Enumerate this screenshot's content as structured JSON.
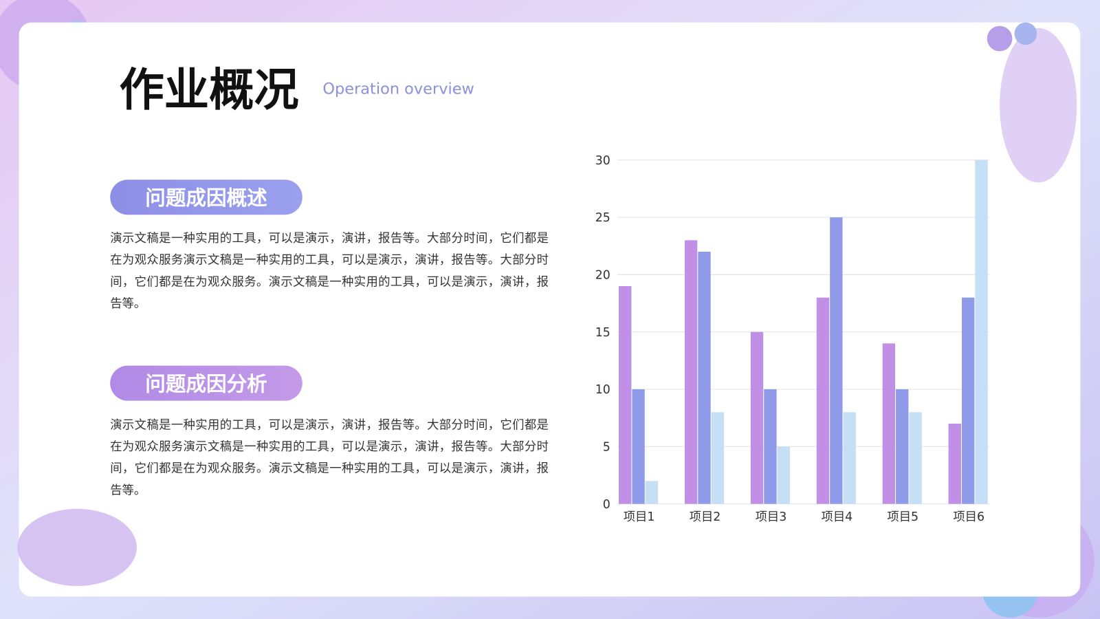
{
  "header": {
    "title": "作业概况",
    "subtitle": "Operation overview"
  },
  "sections": [
    {
      "heading": "问题成因概述",
      "body": "演示文稿是一种实用的工具，可以是演示，演讲，报告等。大部分时间，它们都是在为观众服务演示文稿是一种实用的工具，可以是演示，演讲，报告等。大部分时间，它们都是在为观众服务。演示文稿是一种实用的工具，可以是演示，演讲，报告等。"
    },
    {
      "heading": "问题成因分析",
      "body": "演示文稿是一种实用的工具，可以是演示，演讲，报告等。大部分时间，它们都是在为观众服务演示文稿是一种实用的工具，可以是演示，演讲，报告等。大部分时间，它们都是在为观众服务。演示文稿是一种实用的工具，可以是演示，演讲，报告等。"
    }
  ],
  "chart_data": {
    "type": "bar",
    "categories": [
      "项目1",
      "项目2",
      "项目3",
      "项目4",
      "项目5",
      "项目6"
    ],
    "series": [
      {
        "color": "#c08fe6",
        "values": [
          19,
          23,
          15,
          18,
          14,
          7
        ]
      },
      {
        "color": "#8f9be8",
        "values": [
          10,
          22,
          10,
          25,
          10,
          18
        ]
      },
      {
        "color": "#c5dff7",
        "values": [
          2,
          8,
          5,
          8,
          8,
          30
        ]
      }
    ],
    "ylim": [
      0,
      30
    ],
    "yticks": [
      0,
      5,
      10,
      15,
      20,
      25,
      30
    ],
    "grid": true
  }
}
